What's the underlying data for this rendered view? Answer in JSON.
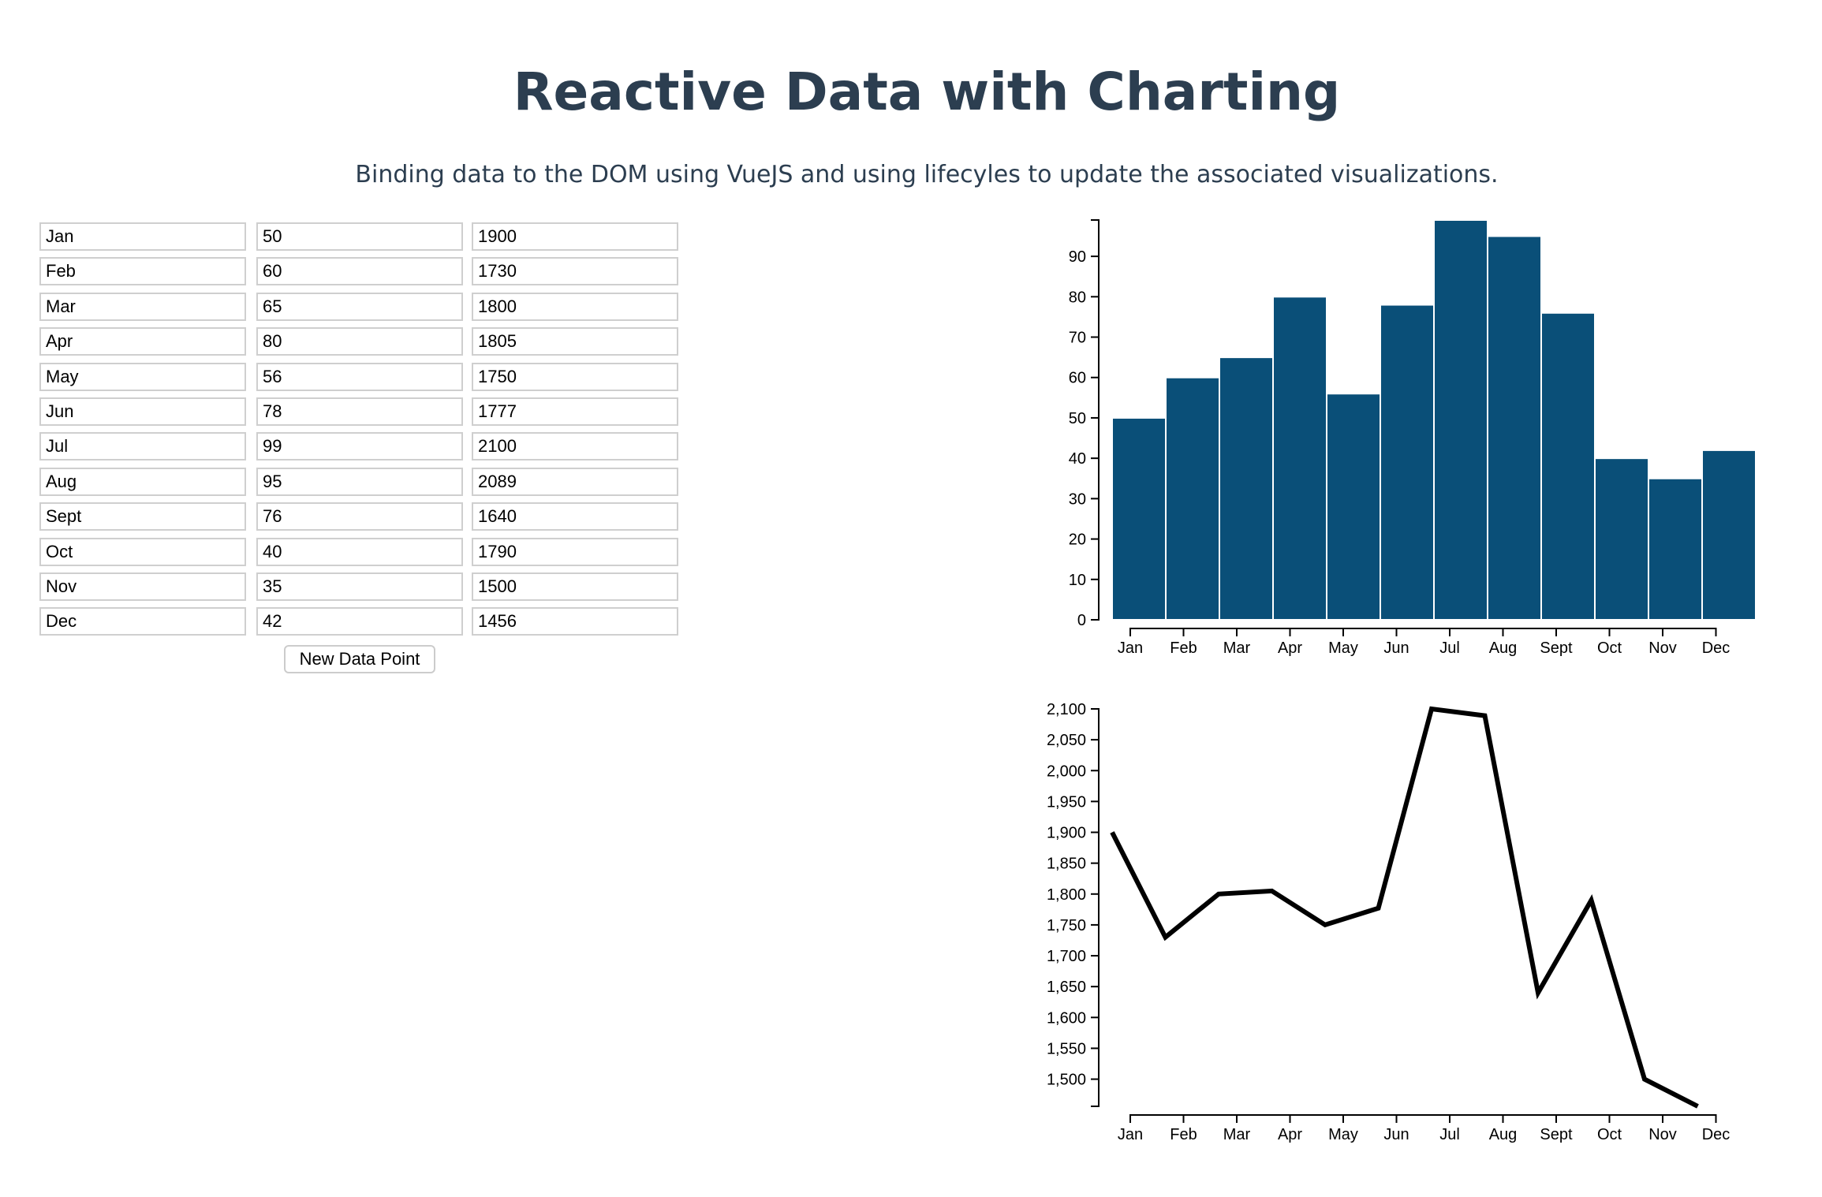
{
  "header": {
    "title": "Reactive Data with Charting",
    "subtitle": "Binding data to the DOM using VueJS and using lifecyles to update the associated visualizations."
  },
  "table": {
    "rows": [
      {
        "month": "Jan",
        "value": "50",
        "total": "1900"
      },
      {
        "month": "Feb",
        "value": "60",
        "total": "1730"
      },
      {
        "month": "Mar",
        "value": "65",
        "total": "1800"
      },
      {
        "month": "Apr",
        "value": "80",
        "total": "1805"
      },
      {
        "month": "May",
        "value": "56",
        "total": "1750"
      },
      {
        "month": "Jun",
        "value": "78",
        "total": "1777"
      },
      {
        "month": "Jul",
        "value": "99",
        "total": "2100"
      },
      {
        "month": "Aug",
        "value": "95",
        "total": "2089"
      },
      {
        "month": "Sept",
        "value": "76",
        "total": "1640"
      },
      {
        "month": "Oct",
        "value": "40",
        "total": "1790"
      },
      {
        "month": "Nov",
        "value": "35",
        "total": "1500"
      },
      {
        "month": "Dec",
        "value": "42",
        "total": "1456"
      }
    ],
    "new_button_label": "New Data Point"
  },
  "colors": {
    "bar": "#0a4f78",
    "line": "#000000",
    "title": "#2c3e50"
  },
  "chart_data": [
    {
      "type": "bar",
      "categories": [
        "Jan",
        "Feb",
        "Mar",
        "Apr",
        "May",
        "Jun",
        "Jul",
        "Aug",
        "Sept",
        "Oct",
        "Nov",
        "Dec"
      ],
      "values": [
        50,
        60,
        65,
        80,
        56,
        78,
        99,
        95,
        76,
        40,
        35,
        42
      ],
      "ylim": [
        0,
        99
      ],
      "yticks": [
        0,
        10,
        20,
        30,
        40,
        50,
        60,
        70,
        80,
        90
      ],
      "grid": false
    },
    {
      "type": "line",
      "categories": [
        "Jan",
        "Feb",
        "Mar",
        "Apr",
        "May",
        "Jun",
        "Jul",
        "Aug",
        "Sept",
        "Oct",
        "Nov",
        "Dec"
      ],
      "values": [
        1900,
        1730,
        1800,
        1805,
        1750,
        1777,
        2100,
        2089,
        1640,
        1790,
        1500,
        1456
      ],
      "ylim": [
        1456,
        2100
      ],
      "yticks": [
        1500,
        1550,
        1600,
        1650,
        1700,
        1750,
        1800,
        1850,
        1900,
        1950,
        2000,
        2050,
        2100
      ],
      "ytick_labels": [
        "1,500",
        "1,550",
        "1,600",
        "1,650",
        "1,700",
        "1,750",
        "1,800",
        "1,850",
        "1,900",
        "1,950",
        "2,000",
        "2,050",
        "2,100"
      ],
      "grid": false
    }
  ]
}
